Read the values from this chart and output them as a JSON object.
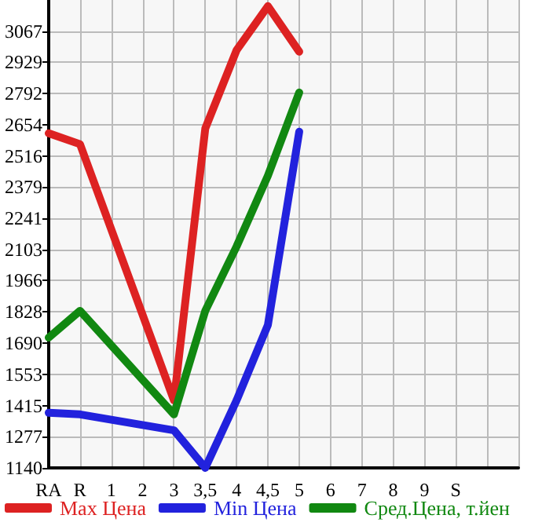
{
  "chart_data": {
    "type": "line",
    "categories": [
      "RA",
      "R",
      "1",
      "2",
      "3",
      "3,5",
      "4",
      "4,5",
      "5",
      "6",
      "7",
      "8",
      "9",
      "S",
      null,
      null
    ],
    "series": [
      {
        "name": "Max Цена",
        "color": "#dd2222",
        "values": [
          2616,
          2568,
          null,
          null,
          1438,
          2637,
          2983,
          3177,
          2976,
          null,
          null,
          null,
          null,
          null,
          null,
          null
        ]
      },
      {
        "name": "Min Цена",
        "color": "#2222dd",
        "values": [
          1383,
          1376,
          null,
          null,
          1306,
          1140,
          1438,
          1771,
          2623,
          null,
          null,
          null,
          null,
          null,
          null,
          null
        ]
      },
      {
        "name": "Сред.Цена, т.йен",
        "color": "#118811",
        "values": [
          1715,
          1833,
          null,
          null,
          1376,
          1833,
          2117,
          2429,
          2796,
          null,
          null,
          null,
          null,
          null,
          null,
          null
        ]
      }
    ],
    "ylim": [
      1140,
      3204
    ],
    "yticks": [
      1140,
      1277,
      1415,
      1553,
      1690,
      1828,
      1966,
      2103,
      2241,
      2379,
      2516,
      2654,
      2792,
      2929,
      3067
    ],
    "grid": true,
    "legend": "bottom",
    "marker": "none",
    "line_style": "solid"
  }
}
